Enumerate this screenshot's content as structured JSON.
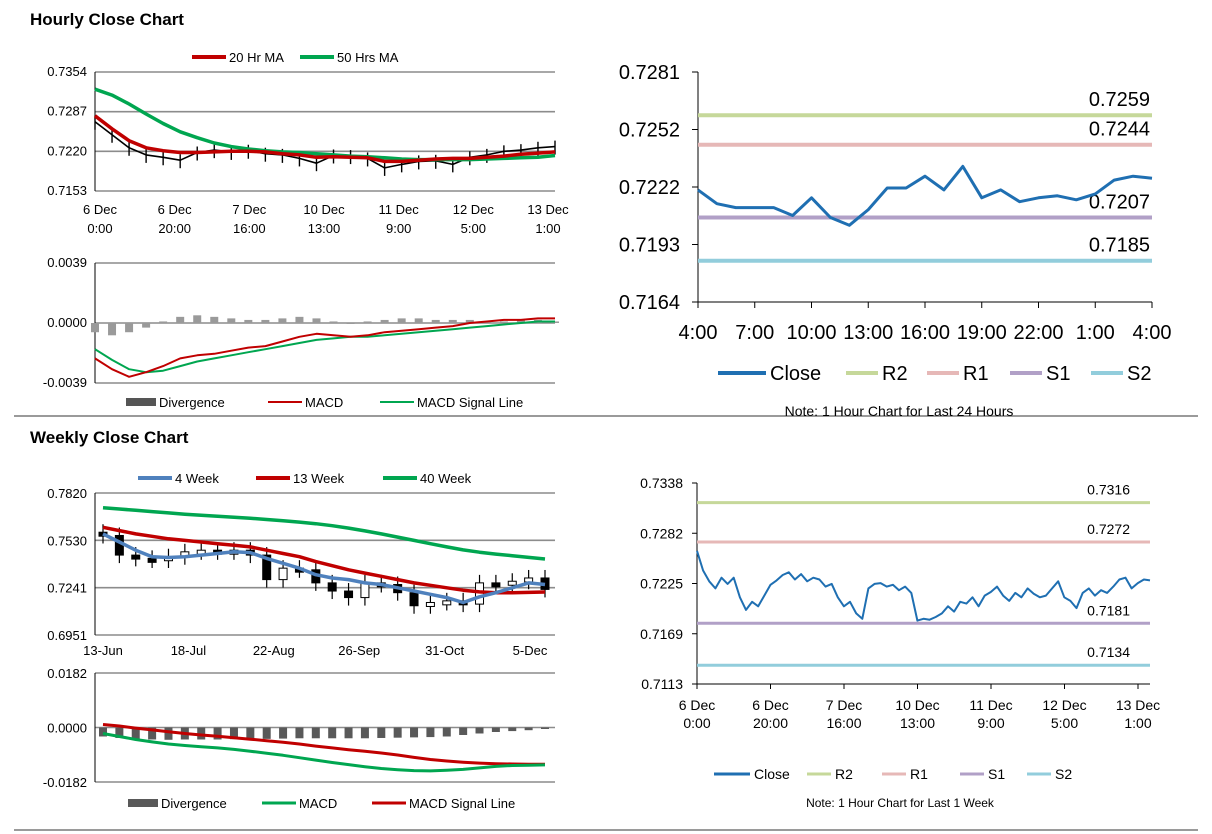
{
  "hourly": {
    "title": "Hourly Close Chart",
    "chart_data": [
      {
        "type": "line",
        "id": "hourly-ma",
        "legend": [
          "20 Hr MA",
          "50 Hrs MA"
        ],
        "colors": {
          "close": "#000000",
          "ma20": "#c00000",
          "ma50": "#00a650"
        },
        "y_ticks": [
          "0.7354",
          "0.7287",
          "0.7220",
          "0.7153"
        ],
        "ylim": [
          0.7153,
          0.7354
        ],
        "x_ticks": [
          [
            "6 Dec",
            "0:00"
          ],
          [
            "6 Dec",
            "20:00"
          ],
          [
            "7 Dec",
            "16:00"
          ],
          [
            "10 Dec",
            "13:00"
          ],
          [
            "11 Dec",
            "9:00"
          ],
          [
            "12 Dec",
            "5:00"
          ],
          [
            "13 Dec",
            "1:00"
          ]
        ],
        "series": [
          {
            "name": "Close",
            "values": [
              0.727,
              0.7248,
              0.7226,
              0.7214,
              0.721,
              0.7205,
              0.7218,
              0.7222,
              0.7219,
              0.7221,
              0.7216,
              0.7214,
              0.7208,
              0.72,
              0.7213,
              0.7212,
              0.7208,
              0.7192,
              0.7198,
              0.7203,
              0.7204,
              0.7198,
              0.721,
              0.7214,
              0.722,
              0.7222,
              0.7226,
              0.7228
            ]
          },
          {
            "name": "20 Hr MA",
            "values": [
              0.728,
              0.7258,
              0.7238,
              0.7226,
              0.7221,
              0.7218,
              0.7218,
              0.7219,
              0.722,
              0.722,
              0.7219,
              0.7216,
              0.7214,
              0.721,
              0.7211,
              0.721,
              0.7209,
              0.7203,
              0.7203,
              0.7205,
              0.7207,
              0.7208,
              0.7208,
              0.721,
              0.7212,
              0.7215,
              0.7217,
              0.7219
            ]
          },
          {
            "name": "50 Hrs MA",
            "values": [
              0.7325,
              0.7315,
              0.73,
              0.7283,
              0.7267,
              0.7253,
              0.7243,
              0.7234,
              0.7228,
              0.7224,
              0.7221,
              0.7219,
              0.7218,
              0.7216,
              0.7214,
              0.7212,
              0.7211,
              0.7209,
              0.7207,
              0.7206,
              0.7206,
              0.7206,
              0.7206,
              0.7207,
              0.7208,
              0.7209,
              0.721,
              0.7213
            ]
          }
        ]
      },
      {
        "type": "line",
        "id": "hourly-macd",
        "legend": [
          "Divergence",
          "MACD",
          "MACD Signal Line"
        ],
        "colors": {
          "divergence": "#555555",
          "macd": "#c00000",
          "signal": "#00a650"
        },
        "y_ticks": [
          "0.0039",
          "0.0000",
          "-0.0039"
        ],
        "ylim": [
          -0.0039,
          0.0039
        ],
        "series": [
          {
            "name": "Divergence",
            "values": [
              -0.0006,
              -0.0008,
              -0.0006,
              -0.0003,
              0.0001,
              0.0004,
              0.0005,
              0.0004,
              0.0003,
              0.0002,
              0.0002,
              0.0003,
              0.0004,
              0.0003,
              0.0001,
              0.0,
              0.0001,
              0.0002,
              0.0003,
              0.0003,
              0.0002,
              0.0002,
              0.0002,
              0.0001,
              0.0001,
              0.0002,
              0.0002,
              0.0001
            ]
          },
          {
            "name": "MACD",
            "values": [
              -0.0023,
              -0.003,
              -0.0035,
              -0.0032,
              -0.0028,
              -0.0023,
              -0.0021,
              -0.002,
              -0.0018,
              -0.0016,
              -0.0015,
              -0.0012,
              -0.0009,
              -0.0007,
              -0.0008,
              -0.0009,
              -0.0008,
              -0.0006,
              -0.0005,
              -0.0004,
              -0.0003,
              -0.0002,
              0.0,
              0.0001,
              0.0002,
              0.0002,
              0.0003,
              0.0003
            ]
          },
          {
            "name": "MACD Signal Line",
            "values": [
              -0.0017,
              -0.0024,
              -0.003,
              -0.0032,
              -0.0031,
              -0.0028,
              -0.0025,
              -0.0023,
              -0.0021,
              -0.0019,
              -0.0017,
              -0.0015,
              -0.0013,
              -0.0011,
              -0.001,
              -0.0009,
              -0.0009,
              -0.0008,
              -0.0007,
              -0.0006,
              -0.0005,
              -0.0004,
              -0.0003,
              -0.0002,
              -0.0001,
              0.0,
              0.0001,
              0.0001
            ]
          }
        ]
      },
      {
        "type": "line",
        "id": "hourly-24h",
        "title": "",
        "note": "Note: 1 Hour Chart for Last 24 Hours",
        "legend": [
          "Close",
          "R2",
          "R1",
          "S1",
          "S2"
        ],
        "colors": {
          "close": "#1f6fb2",
          "r2": "#c6d89a",
          "r1": "#e6b8b7",
          "s1": "#b1a0c7",
          "s2": "#92cddc"
        },
        "y_ticks": [
          "0.7281",
          "0.7252",
          "0.7222",
          "0.7193",
          "0.7164"
        ],
        "ylim": [
          0.7164,
          0.7281
        ],
        "x_ticks": [
          "4:00",
          "7:00",
          "10:00",
          "13:00",
          "16:00",
          "19:00",
          "22:00",
          "1:00",
          "4:00"
        ],
        "levels": {
          "R2": 0.7259,
          "R1": 0.7244,
          "S1": 0.7207,
          "S2": 0.7185
        },
        "level_labels": {
          "R2": "0.7259",
          "R1": "0.7244",
          "S1": "0.7207",
          "S2": "0.7185"
        },
        "series": [
          {
            "name": "Close",
            "values": [
              0.7221,
              0.7214,
              0.7212,
              0.7212,
              0.7212,
              0.7208,
              0.7217,
              0.7207,
              0.7203,
              0.7211,
              0.7222,
              0.7222,
              0.7228,
              0.7221,
              0.7233,
              0.7217,
              0.7221,
              0.7215,
              0.7217,
              0.7218,
              0.7216,
              0.7219,
              0.7226,
              0.7228,
              0.7227
            ]
          }
        ]
      }
    ]
  },
  "weekly": {
    "title": "Weekly Close Chart",
    "chart_data": [
      {
        "type": "line",
        "id": "weekly-ma",
        "legend": [
          "4 Week",
          "13 Week",
          "40 Week"
        ],
        "colors": {
          "close": "#000000",
          "ma4": "#4f81bd",
          "ma13": "#c00000",
          "ma40": "#00a650"
        },
        "y_ticks": [
          "0.7820",
          "0.7530",
          "0.7241",
          "0.6951"
        ],
        "ylim": [
          0.6951,
          0.782
        ],
        "x_ticks": [
          "13-Jun",
          "18-Jul",
          "22-Aug",
          "26-Sep",
          "31-Oct",
          "5-Dec"
        ],
        "series": [
          {
            "name": "Close",
            "values": [
              0.756,
              0.744,
              0.742,
              0.741,
              0.743,
              0.746,
              0.747,
              0.746,
              0.747,
              0.744,
              0.729,
              0.736,
              0.735,
              0.727,
              0.722,
              0.718,
              0.727,
              0.726,
              0.721,
              0.713,
              0.715,
              0.716,
              0.714,
              0.727,
              0.726,
              0.728,
              0.73,
              0.723
            ]
          },
          {
            "name": "4 Week",
            "values": [
              0.757,
              0.752,
              0.747,
              0.743,
              0.7425,
              0.743,
              0.744,
              0.745,
              0.746,
              0.7455,
              0.742,
              0.739,
              0.736,
              0.732,
              0.73,
              0.729,
              0.727,
              0.726,
              0.724,
              0.722,
              0.72,
              0.718,
              0.715,
              0.7185,
              0.721,
              0.724,
              0.727,
              0.726
            ]
          },
          {
            "name": "13 Week",
            "values": [
              0.761,
              0.759,
              0.757,
              0.7555,
              0.754,
              0.753,
              0.752,
              0.751,
              0.75,
              0.749,
              0.747,
              0.745,
              0.743,
              0.74,
              0.7375,
              0.735,
              0.733,
              0.731,
              0.729,
              0.727,
              0.7255,
              0.724,
              0.7225,
              0.7215,
              0.721,
              0.721,
              0.7212,
              0.7214
            ]
          },
          {
            "name": "40 Week",
            "values": [
              0.773,
              0.7722,
              0.7714,
              0.7706,
              0.7698,
              0.769,
              0.7684,
              0.7678,
              0.7672,
              0.7666,
              0.7658,
              0.765,
              0.7642,
              0.7632,
              0.762,
              0.7605,
              0.7588,
              0.757,
              0.755,
              0.753,
              0.751,
              0.749,
              0.7472,
              0.7458,
              0.7446,
              0.7436,
              0.7426,
              0.7416
            ]
          }
        ]
      },
      {
        "type": "line",
        "id": "weekly-macd",
        "legend": [
          "Divergence",
          "MACD",
          "MACD Signal Line"
        ],
        "colors": {
          "divergence": "#595959",
          "macd": "#00a650",
          "signal": "#c00000"
        },
        "y_ticks": [
          "0.0182",
          "0.0000",
          "-0.0182"
        ],
        "ylim": [
          -0.0182,
          0.0182
        ],
        "series": [
          {
            "name": "Divergence",
            "values": [
              -0.003,
              -0.0035,
              -0.0038,
              -0.004,
              -0.0041,
              -0.004,
              -0.004,
              -0.004,
              -0.0039,
              -0.0038,
              -0.0038,
              -0.0037,
              -0.0036,
              -0.0036,
              -0.0036,
              -0.0036,
              -0.0036,
              -0.0035,
              -0.0034,
              -0.0033,
              -0.0032,
              -0.003,
              -0.0025,
              -0.002,
              -0.0015,
              -0.0012,
              -0.0009,
              -0.0005
            ]
          },
          {
            "name": "MACD",
            "values": [
              -0.002,
              -0.003,
              -0.004,
              -0.0048,
              -0.0055,
              -0.006,
              -0.0064,
              -0.0068,
              -0.0073,
              -0.0079,
              -0.0086,
              -0.0093,
              -0.0101,
              -0.0109,
              -0.0117,
              -0.0124,
              -0.0131,
              -0.0137,
              -0.0141,
              -0.0144,
              -0.0145,
              -0.0143,
              -0.014,
              -0.0135,
              -0.013,
              -0.0127,
              -0.0126,
              -0.0125
            ]
          },
          {
            "name": "MACD Signal Line",
            "values": [
              0.001,
              0.0005,
              -0.0002,
              -0.0008,
              -0.0014,
              -0.002,
              -0.0025,
              -0.0029,
              -0.0034,
              -0.0039,
              -0.0044,
              -0.0049,
              -0.0055,
              -0.0062,
              -0.0068,
              -0.0074,
              -0.0079,
              -0.0085,
              -0.0092,
              -0.01,
              -0.0107,
              -0.0112,
              -0.0116,
              -0.0119,
              -0.0121,
              -0.0122,
              -0.0123,
              -0.0123
            ]
          }
        ]
      },
      {
        "type": "line",
        "id": "weekly-1w",
        "note": "Note: 1 Hour Chart for Last 1 Week",
        "legend": [
          "Close",
          "R2",
          "R1",
          "S1",
          "S2"
        ],
        "colors": {
          "close": "#1f6fb2",
          "r2": "#c6d89a",
          "r1": "#e6b8b7",
          "s1": "#b1a0c7",
          "s2": "#92cddc"
        },
        "y_ticks": [
          "0.7338",
          "0.7282",
          "0.7225",
          "0.7169",
          "0.7113"
        ],
        "ylim": [
          0.7113,
          0.7338
        ],
        "x_ticks": [
          [
            "6 Dec",
            "0:00"
          ],
          [
            "6 Dec",
            "20:00"
          ],
          [
            "7 Dec",
            "16:00"
          ],
          [
            "10 Dec",
            "13:00"
          ],
          [
            "11 Dec",
            "9:00"
          ],
          [
            "12 Dec",
            "5:00"
          ],
          [
            "13 Dec",
            "1:00"
          ]
        ],
        "levels": {
          "R2": 0.7316,
          "R1": 0.7272,
          "S1": 0.7181,
          "S2": 0.7134
        },
        "level_labels": {
          "R2": "0.7316",
          "R1": "0.7272",
          "S1": "0.7181",
          "S2": "0.7134"
        },
        "series": [
          {
            "name": "Close",
            "values": [
              0.7262,
              0.724,
              0.7228,
              0.722,
              0.7232,
              0.7225,
              0.7232,
              0.721,
              0.7196,
              0.7205,
              0.72,
              0.7212,
              0.7224,
              0.7229,
              0.7235,
              0.7238,
              0.723,
              0.7236,
              0.7228,
              0.7232,
              0.723,
              0.7222,
              0.7225,
              0.721,
              0.72,
              0.7205,
              0.7192,
              0.7186,
              0.722,
              0.7225,
              0.7226,
              0.7222,
              0.7224,
              0.7218,
              0.7222,
              0.7215,
              0.7184,
              0.7186,
              0.7185,
              0.7188,
              0.7192,
              0.72,
              0.7194,
              0.7205,
              0.7203,
              0.721,
              0.72,
              0.7212,
              0.7216,
              0.7222,
              0.7212,
              0.7206,
              0.7215,
              0.721,
              0.722,
              0.7214,
              0.721,
              0.7212,
              0.722,
              0.7228,
              0.721,
              0.7206,
              0.7198,
              0.7215,
              0.722,
              0.7212,
              0.7218,
              0.7215,
              0.7222,
              0.723,
              0.7232,
              0.722,
              0.7226,
              0.723,
              0.7229
            ]
          }
        ]
      }
    ]
  }
}
